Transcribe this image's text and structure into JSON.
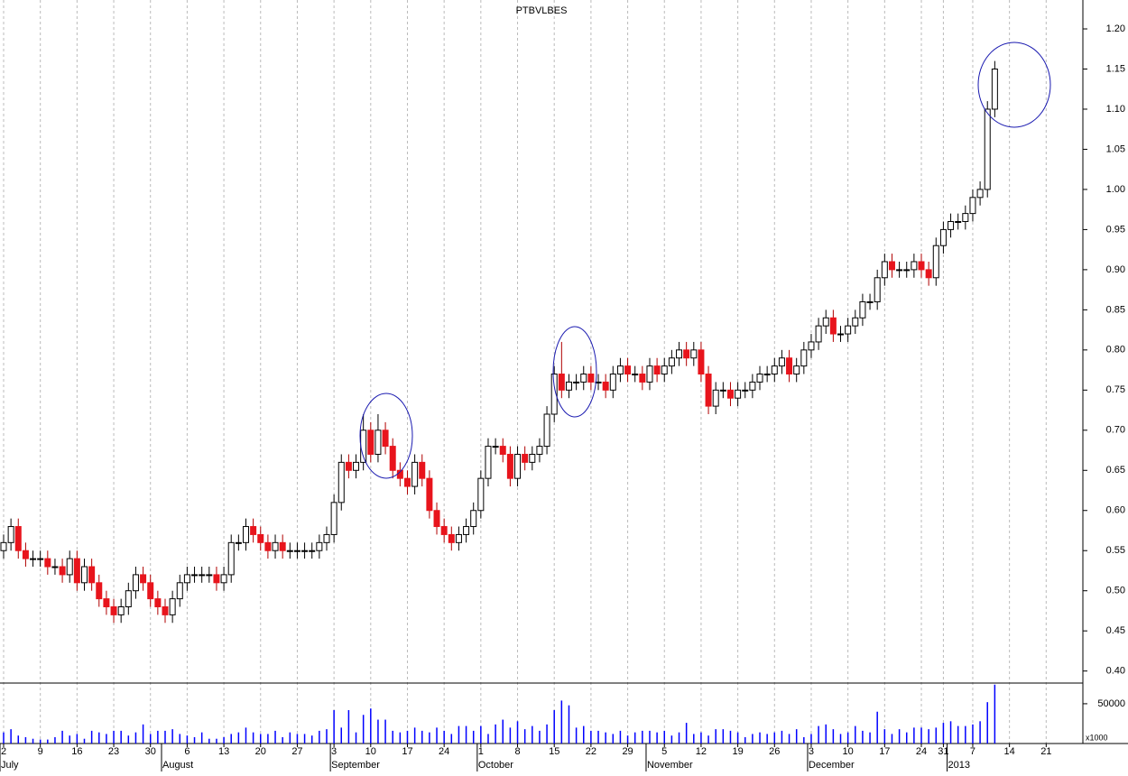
{
  "chart_data": {
    "type": "candlestick",
    "title": "PTBVLBES",
    "open": [
      0.55,
      0.56,
      0.58,
      0.55,
      0.54,
      0.54,
      0.54,
      0.53,
      0.53,
      0.52,
      0.54,
      0.51,
      0.53,
      0.51,
      0.49,
      0.48,
      0.47,
      0.48,
      0.5,
      0.52,
      0.51,
      0.49,
      0.48,
      0.47,
      0.49,
      0.51,
      0.52,
      0.52,
      0.52,
      0.52,
      0.51,
      0.52,
      0.56,
      0.56,
      0.58,
      0.57,
      0.56,
      0.55,
      0.56,
      0.55,
      0.55,
      0.55,
      0.55,
      0.55,
      0.56,
      0.57,
      0.61,
      0.66,
      0.65,
      0.66,
      0.7,
      0.67,
      0.7,
      0.68,
      0.65,
      0.64,
      0.63,
      0.66,
      0.64,
      0.6,
      0.58,
      0.57,
      0.56,
      0.57,
      0.58,
      0.6,
      0.64,
      0.68,
      0.68,
      0.67,
      0.64,
      0.67,
      0.66,
      0.67,
      0.68,
      0.72,
      0.77,
      0.75,
      0.76,
      0.76,
      0.77,
      0.76,
      0.76,
      0.75,
      0.77,
      0.78,
      0.77,
      0.77,
      0.76,
      0.78,
      0.77,
      0.78,
      0.79,
      0.8,
      0.79,
      0.8,
      0.77,
      0.73,
      0.75,
      0.75,
      0.74,
      0.75,
      0.75,
      0.76,
      0.77,
      0.77,
      0.78,
      0.79,
      0.77,
      0.78,
      0.8,
      0.81,
      0.83,
      0.84,
      0.82,
      0.82,
      0.83,
      0.84,
      0.86,
      0.86,
      0.89,
      0.91,
      0.9,
      0.9,
      0.9,
      0.91,
      0.9,
      0.89,
      0.93,
      0.95,
      0.96,
      0.96,
      0.97,
      0.99,
      1.0,
      1.1
    ],
    "high": [
      0.57,
      0.59,
      0.59,
      0.56,
      0.55,
      0.55,
      0.55,
      0.54,
      0.54,
      0.55,
      0.55,
      0.54,
      0.54,
      0.52,
      0.5,
      0.49,
      0.49,
      0.51,
      0.53,
      0.53,
      0.52,
      0.5,
      0.49,
      0.5,
      0.52,
      0.53,
      0.53,
      0.53,
      0.53,
      0.53,
      0.53,
      0.57,
      0.57,
      0.59,
      0.59,
      0.58,
      0.57,
      0.57,
      0.57,
      0.56,
      0.56,
      0.56,
      0.56,
      0.57,
      0.58,
      0.62,
      0.67,
      0.67,
      0.67,
      0.72,
      0.71,
      0.72,
      0.71,
      0.69,
      0.66,
      0.65,
      0.67,
      0.67,
      0.65,
      0.61,
      0.59,
      0.58,
      0.58,
      0.59,
      0.61,
      0.65,
      0.69,
      0.69,
      0.69,
      0.68,
      0.68,
      0.68,
      0.68,
      0.69,
      0.73,
      0.78,
      0.81,
      0.77,
      0.77,
      0.78,
      0.78,
      0.77,
      0.77,
      0.78,
      0.79,
      0.79,
      0.78,
      0.78,
      0.79,
      0.79,
      0.79,
      0.8,
      0.81,
      0.81,
      0.81,
      0.81,
      0.78,
      0.76,
      0.76,
      0.76,
      0.76,
      0.76,
      0.77,
      0.78,
      0.78,
      0.79,
      0.8,
      0.8,
      0.79,
      0.81,
      0.82,
      0.84,
      0.85,
      0.85,
      0.83,
      0.84,
      0.85,
      0.87,
      0.87,
      0.9,
      0.92,
      0.92,
      0.91,
      0.91,
      0.92,
      0.92,
      0.91,
      0.94,
      0.96,
      0.97,
      0.97,
      0.98,
      1.0,
      1.01,
      1.11,
      1.16
    ],
    "low": [
      0.54,
      0.55,
      0.54,
      0.53,
      0.53,
      0.53,
      0.52,
      0.52,
      0.51,
      0.51,
      0.5,
      0.5,
      0.5,
      0.48,
      0.47,
      0.46,
      0.46,
      0.47,
      0.49,
      0.5,
      0.48,
      0.47,
      0.46,
      0.46,
      0.48,
      0.5,
      0.51,
      0.51,
      0.51,
      0.5,
      0.5,
      0.51,
      0.55,
      0.55,
      0.56,
      0.55,
      0.54,
      0.54,
      0.54,
      0.54,
      0.54,
      0.54,
      0.54,
      0.54,
      0.55,
      0.56,
      0.6,
      0.64,
      0.64,
      0.65,
      0.66,
      0.66,
      0.67,
      0.64,
      0.63,
      0.62,
      0.62,
      0.63,
      0.59,
      0.57,
      0.56,
      0.55,
      0.55,
      0.56,
      0.57,
      0.59,
      0.63,
      0.67,
      0.66,
      0.63,
      0.63,
      0.65,
      0.65,
      0.66,
      0.67,
      0.71,
      0.74,
      0.74,
      0.75,
      0.75,
      0.75,
      0.75,
      0.74,
      0.74,
      0.76,
      0.76,
      0.76,
      0.75,
      0.75,
      0.76,
      0.76,
      0.77,
      0.78,
      0.78,
      0.78,
      0.76,
      0.72,
      0.72,
      0.74,
      0.73,
      0.73,
      0.74,
      0.74,
      0.75,
      0.76,
      0.76,
      0.77,
      0.76,
      0.76,
      0.77,
      0.79,
      0.8,
      0.82,
      0.81,
      0.81,
      0.81,
      0.82,
      0.83,
      0.85,
      0.85,
      0.88,
      0.89,
      0.89,
      0.89,
      0.89,
      0.89,
      0.88,
      0.88,
      0.92,
      0.94,
      0.95,
      0.95,
      0.96,
      0.98,
      0.99,
      1.09
    ],
    "close": [
      0.56,
      0.58,
      0.55,
      0.54,
      0.54,
      0.54,
      0.53,
      0.53,
      0.52,
      0.54,
      0.51,
      0.53,
      0.51,
      0.49,
      0.48,
      0.47,
      0.48,
      0.5,
      0.52,
      0.51,
      0.49,
      0.48,
      0.47,
      0.49,
      0.51,
      0.52,
      0.52,
      0.52,
      0.52,
      0.51,
      0.52,
      0.56,
      0.56,
      0.58,
      0.57,
      0.56,
      0.55,
      0.56,
      0.55,
      0.55,
      0.55,
      0.55,
      0.55,
      0.56,
      0.57,
      0.61,
      0.66,
      0.65,
      0.66,
      0.7,
      0.67,
      0.7,
      0.68,
      0.65,
      0.64,
      0.63,
      0.66,
      0.64,
      0.6,
      0.58,
      0.57,
      0.56,
      0.57,
      0.58,
      0.6,
      0.64,
      0.68,
      0.68,
      0.67,
      0.64,
      0.67,
      0.66,
      0.67,
      0.68,
      0.72,
      0.77,
      0.75,
      0.76,
      0.76,
      0.77,
      0.76,
      0.76,
      0.75,
      0.77,
      0.78,
      0.77,
      0.77,
      0.76,
      0.78,
      0.77,
      0.78,
      0.79,
      0.8,
      0.79,
      0.8,
      0.77,
      0.73,
      0.75,
      0.75,
      0.74,
      0.75,
      0.75,
      0.76,
      0.77,
      0.77,
      0.78,
      0.79,
      0.77,
      0.78,
      0.8,
      0.81,
      0.83,
      0.84,
      0.82,
      0.82,
      0.83,
      0.84,
      0.86,
      0.86,
      0.89,
      0.91,
      0.9,
      0.9,
      0.9,
      0.91,
      0.9,
      0.89,
      0.93,
      0.95,
      0.96,
      0.96,
      0.97,
      0.99,
      1.0,
      1.1,
      1.15
    ],
    "up_color": "#ffffff",
    "down_color": "#e8141c",
    "xlim": [
      0,
      147
    ],
    "xticks": [
      {
        "value": 0,
        "label": "2"
      },
      {
        "value": 5,
        "label": "9"
      },
      {
        "value": 10,
        "label": "16"
      },
      {
        "value": 15,
        "label": "23"
      },
      {
        "value": 20,
        "label": "30"
      },
      {
        "value": 25,
        "label": "6"
      },
      {
        "value": 30,
        "label": "13"
      },
      {
        "value": 35,
        "label": "20"
      },
      {
        "value": 40,
        "label": "27"
      },
      {
        "value": 45,
        "label": "3"
      },
      {
        "value": 50,
        "label": "10"
      },
      {
        "value": 55,
        "label": "17"
      },
      {
        "value": 60,
        "label": "24"
      },
      {
        "value": 65,
        "label": "1"
      },
      {
        "value": 70,
        "label": "8"
      },
      {
        "value": 75,
        "label": "15"
      },
      {
        "value": 80,
        "label": "22"
      },
      {
        "value": 85,
        "label": "29"
      },
      {
        "value": 90,
        "label": "5"
      },
      {
        "value": 95,
        "label": "12"
      },
      {
        "value": 100,
        "label": "19"
      },
      {
        "value": 105,
        "label": "26"
      },
      {
        "value": 110,
        "label": "3"
      },
      {
        "value": 115,
        "label": "10"
      },
      {
        "value": 120,
        "label": "17"
      },
      {
        "value": 125,
        "label": "24"
      },
      {
        "value": 128,
        "label": "31"
      },
      {
        "value": 132,
        "label": "7"
      },
      {
        "value": 137,
        "label": "14"
      },
      {
        "value": 142,
        "label": "21"
      }
    ],
    "month_ticks": [
      {
        "value": 0,
        "label": "July"
      },
      {
        "value": 22,
        "label": "August"
      },
      {
        "value": 45,
        "label": "September"
      },
      {
        "value": 65,
        "label": "October"
      },
      {
        "value": 88,
        "label": "November"
      },
      {
        "value": 110,
        "label": "December"
      },
      {
        "value": 129,
        "label": "2013"
      }
    ],
    "ylim": [
      0.385,
      1.236
    ],
    "yticks": [
      {
        "value": 0.4,
        "label": "0.40"
      },
      0.45,
      {
        "value": 0.5,
        "label": "0.50"
      },
      0.55,
      {
        "value": 0.6,
        "label": "0.60"
      },
      0.65,
      {
        "value": 0.7,
        "label": "0.70"
      },
      0.75,
      {
        "value": 0.8,
        "label": "0.80"
      },
      0.85,
      {
        "value": 0.9,
        "label": "0.90"
      },
      0.95,
      {
        "value": 1.0,
        "label": "1.00"
      },
      1.05,
      {
        "value": 1.1,
        "label": "1.10"
      },
      1.15,
      {
        "value": 1.2,
        "label": "1.20"
      }
    ],
    "grid": true,
    "volume": {
      "color": "#0000ff",
      "ylim": [
        0,
        76000
      ],
      "yticks": [
        50000
      ],
      "unit_label": "x1000",
      "values": [
        14000,
        18000,
        10000,
        8000,
        6000,
        5000,
        5000,
        8000,
        16000,
        10000,
        12000,
        6000,
        16000,
        14000,
        12000,
        16000,
        16000,
        10000,
        14000,
        24000,
        12000,
        16000,
        16000,
        18000,
        12000,
        10000,
        8000,
        14000,
        6000,
        6000,
        8000,
        12000,
        14000,
        20000,
        14000,
        12000,
        12000,
        16000,
        8000,
        14000,
        12000,
        12000,
        10000,
        16000,
        18000,
        42000,
        20000,
        42000,
        14000,
        36000,
        44000,
        30000,
        30000,
        16000,
        14000,
        16000,
        20000,
        16000,
        14000,
        20000,
        16000,
        12000,
        22000,
        22000,
        16000,
        22000,
        12000,
        24000,
        30000,
        20000,
        28000,
        18000,
        22000,
        16000,
        24000,
        42000,
        54000,
        48000,
        20000,
        22000,
        16000,
        16000,
        14000,
        12000,
        16000,
        10000,
        14000,
        16000,
        16000,
        14000,
        16000,
        10000,
        14000,
        26000,
        12000,
        14000,
        10000,
        18000,
        18000,
        16000,
        14000,
        8000,
        12000,
        14000,
        12000,
        14000,
        16000,
        12000,
        18000,
        8000,
        12000,
        22000,
        24000,
        18000,
        12000,
        14000,
        22000,
        16000,
        14000,
        40000,
        18000,
        12000,
        18000,
        14000,
        20000,
        20000,
        18000,
        20000,
        26000,
        28000,
        22000,
        22000,
        24000,
        28000,
        52000,
        74000
      ]
    }
  }
}
